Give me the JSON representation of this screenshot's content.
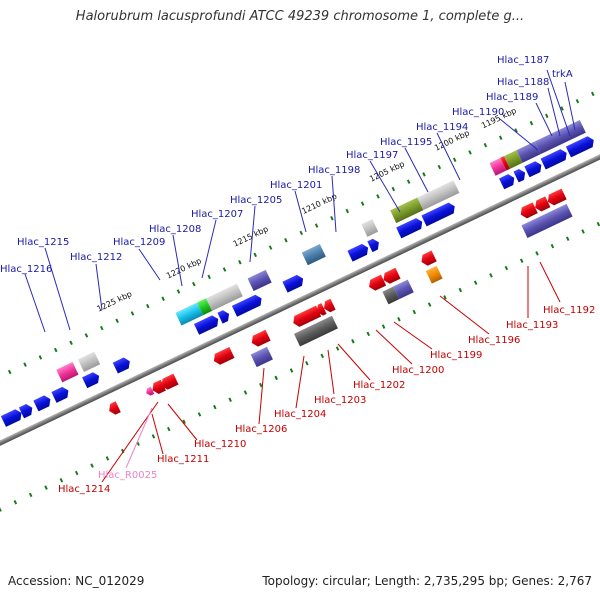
{
  "title": "Halorubrum lacusprofundi ATCC 49239 chromosome 1, complete g...",
  "footer": {
    "accession": "Accession: NC_012029",
    "summary": "Topology: circular; Length: 2,735,295 bp; Genes: 2,767"
  },
  "scale_ticks": [
    "1195 kbp",
    "1200 kbp",
    "1205 kbp",
    "1210 kbp",
    "1215 kbp",
    "1220 kbp",
    "1225 kbp"
  ],
  "labels_forward": [
    "Hlac_1187",
    "Hlac_1188",
    "Hlac_1189",
    "trkA",
    "Hlac_1190",
    "Hlac_1194",
    "Hlac_1195",
    "Hlac_1197",
    "Hlac_1198",
    "Hlac_1201",
    "Hlac_1205",
    "Hlac_1207",
    "Hlac_1208",
    "Hlac_1209",
    "Hlac_1212",
    "Hlac_1215",
    "Hlac_1216"
  ],
  "labels_reverse": [
    "Hlac_1192",
    "Hlac_1193",
    "Hlac_1196",
    "Hlac_1199",
    "Hlac_1200",
    "Hlac_1202",
    "Hlac_1203",
    "Hlac_1204",
    "Hlac_1206",
    "Hlac_1210",
    "Hlac_1211",
    "Hlac_R0025",
    "Hlac_1214"
  ],
  "colors": {
    "forward_gene": "#0a14e0",
    "reverse_gene": "#e00010",
    "forward_label": "#1a1aa6",
    "reverse_label": "#c40000",
    "rna_label": "#ee82c8",
    "backbone": "#808080",
    "scale_ticks": "#1a7a1a"
  }
}
